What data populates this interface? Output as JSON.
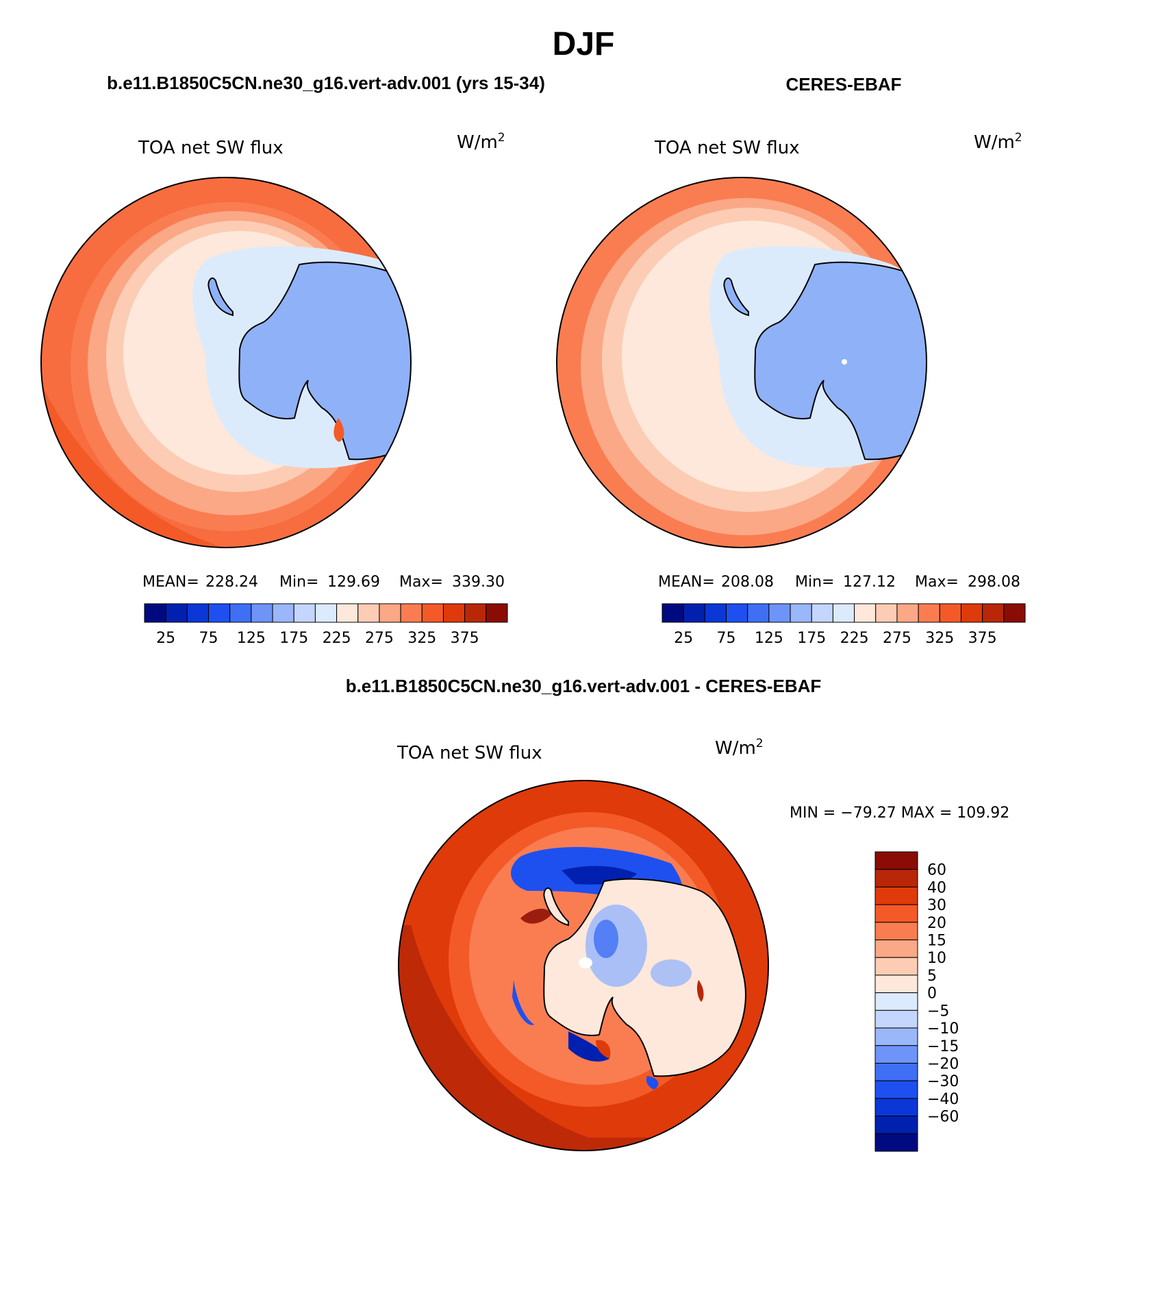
{
  "title": "DJF",
  "colors": {
    "scale": [
      "#000a80",
      "#0020b0",
      "#0a37d6",
      "#1e50f0",
      "#3f6ff5",
      "#6e94f7",
      "#9ab7fa",
      "#c4d6fd",
      "#dceafe",
      "#fde8db",
      "#fccdb4",
      "#fba886",
      "#fa7d52",
      "#f35a28",
      "#df3a0a",
      "#b82708",
      "#8a0c05"
    ],
    "coastline": "#000000",
    "ocean_far": "#f2643a",
    "sea_ice": "#dcebfc",
    "land": "#8fb1f7"
  },
  "panels": {
    "model": {
      "header": "b.e11.B1850C5CN.ne30_g16.vert-adv.001 (yrs 15-34)",
      "variable": "TOA net SW flux",
      "units": "W/m",
      "units_exp": "2",
      "stats": {
        "mean_label": "MEAN=",
        "mean": "228.24",
        "min_label": "Min=",
        "min": "129.69",
        "max_label": "Max=",
        "max": "339.30"
      }
    },
    "obs": {
      "header": "CERES-EBAF",
      "variable": "TOA net SW flux",
      "units": "W/m",
      "units_exp": "2",
      "stats": {
        "mean_label": "MEAN=",
        "mean": "208.08",
        "min_label": "Min=",
        "min": "127.12",
        "max_label": "Max=",
        "max": "298.08"
      }
    },
    "diff": {
      "header": "b.e11.B1850C5CN.ne30_g16.vert-adv.001 - CERES-EBAF",
      "variable": "TOA net SW flux",
      "units": "W/m",
      "units_exp": "2",
      "minmax": "MIN = −79.27 MAX = 109.92"
    }
  },
  "legend_abs": {
    "ticks": [
      "25",
      "75",
      "125",
      "175",
      "225",
      "275",
      "325",
      "375"
    ]
  },
  "legend_diff": {
    "ticks": [
      "60",
      "40",
      "30",
      "20",
      "15",
      "10",
      "5",
      "0",
      "−5",
      "−10",
      "−15",
      "−20",
      "−30",
      "−40",
      "−60"
    ]
  }
}
